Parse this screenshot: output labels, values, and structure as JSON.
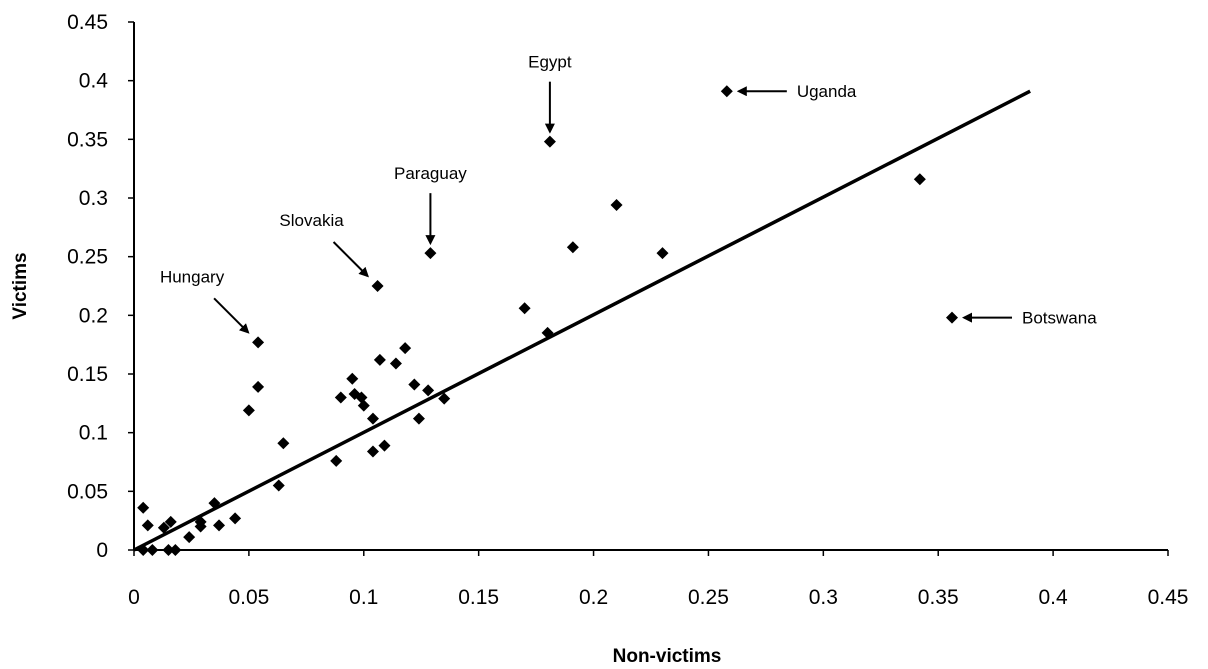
{
  "chart_data": {
    "type": "scatter",
    "title": "",
    "xlabel": "Non-victims",
    "ylabel": "Victims",
    "xlim": [
      0,
      0.45
    ],
    "ylim": [
      0,
      0.45
    ],
    "x_ticks": [
      "0",
      "0.05",
      "0.1",
      "0.15",
      "0.2",
      "0.25",
      "0.3",
      "0.35",
      "0.4",
      "0.45"
    ],
    "y_ticks": [
      "0",
      "0.05",
      "0.1",
      "0.15",
      "0.2",
      "0.25",
      "0.3",
      "0.35",
      "0.4",
      "0.45"
    ],
    "grid": false,
    "legend": "none",
    "marker": "diamond",
    "marker_color": "#000000",
    "points": [
      {
        "x": 0.004,
        "y": 0.036
      },
      {
        "x": 0.004,
        "y": 0.0
      },
      {
        "x": 0.006,
        "y": 0.021
      },
      {
        "x": 0.008,
        "y": 0.0
      },
      {
        "x": 0.013,
        "y": 0.019
      },
      {
        "x": 0.015,
        "y": 0.0
      },
      {
        "x": 0.016,
        "y": 0.024
      },
      {
        "x": 0.018,
        "y": 0.0
      },
      {
        "x": 0.024,
        "y": 0.011
      },
      {
        "x": 0.029,
        "y": 0.02
      },
      {
        "x": 0.029,
        "y": 0.024
      },
      {
        "x": 0.035,
        "y": 0.04
      },
      {
        "x": 0.037,
        "y": 0.021
      },
      {
        "x": 0.044,
        "y": 0.027
      },
      {
        "x": 0.05,
        "y": 0.119
      },
      {
        "x": 0.054,
        "y": 0.139
      },
      {
        "x": 0.054,
        "y": 0.177
      },
      {
        "x": 0.065,
        "y": 0.091
      },
      {
        "x": 0.063,
        "y": 0.055
      },
      {
        "x": 0.088,
        "y": 0.076
      },
      {
        "x": 0.09,
        "y": 0.13
      },
      {
        "x": 0.095,
        "y": 0.146
      },
      {
        "x": 0.096,
        "y": 0.133
      },
      {
        "x": 0.099,
        "y": 0.13
      },
      {
        "x": 0.1,
        "y": 0.123
      },
      {
        "x": 0.104,
        "y": 0.084
      },
      {
        "x": 0.104,
        "y": 0.112
      },
      {
        "x": 0.106,
        "y": 0.225
      },
      {
        "x": 0.107,
        "y": 0.162
      },
      {
        "x": 0.109,
        "y": 0.089
      },
      {
        "x": 0.114,
        "y": 0.159
      },
      {
        "x": 0.118,
        "y": 0.172
      },
      {
        "x": 0.122,
        "y": 0.141
      },
      {
        "x": 0.124,
        "y": 0.112
      },
      {
        "x": 0.128,
        "y": 0.136
      },
      {
        "x": 0.129,
        "y": 0.253
      },
      {
        "x": 0.135,
        "y": 0.129
      },
      {
        "x": 0.17,
        "y": 0.206
      },
      {
        "x": 0.18,
        "y": 0.185
      },
      {
        "x": 0.181,
        "y": 0.348
      },
      {
        "x": 0.191,
        "y": 0.258
      },
      {
        "x": 0.21,
        "y": 0.294
      },
      {
        "x": 0.23,
        "y": 0.253
      },
      {
        "x": 0.258,
        "y": 0.391
      },
      {
        "x": 0.342,
        "y": 0.316
      },
      {
        "x": 0.356,
        "y": 0.198
      }
    ],
    "trendline": {
      "x": [
        0.0,
        0.39
      ],
      "y": [
        0.0,
        0.391
      ]
    },
    "annotations": [
      {
        "label": "Egypt",
        "x": 0.181,
        "y": 0.348,
        "arrow": "down"
      },
      {
        "label": "Uganda",
        "x": 0.258,
        "y": 0.391,
        "arrow": "left"
      },
      {
        "label": "Paraguay",
        "x": 0.129,
        "y": 0.253,
        "arrow": "down"
      },
      {
        "label": "Slovakia",
        "x": 0.106,
        "y": 0.225,
        "arrow": "down-right"
      },
      {
        "label": "Hungary",
        "x": 0.054,
        "y": 0.177,
        "arrow": "down-right"
      },
      {
        "label": "Botswana",
        "x": 0.356,
        "y": 0.198,
        "arrow": "left"
      }
    ]
  }
}
